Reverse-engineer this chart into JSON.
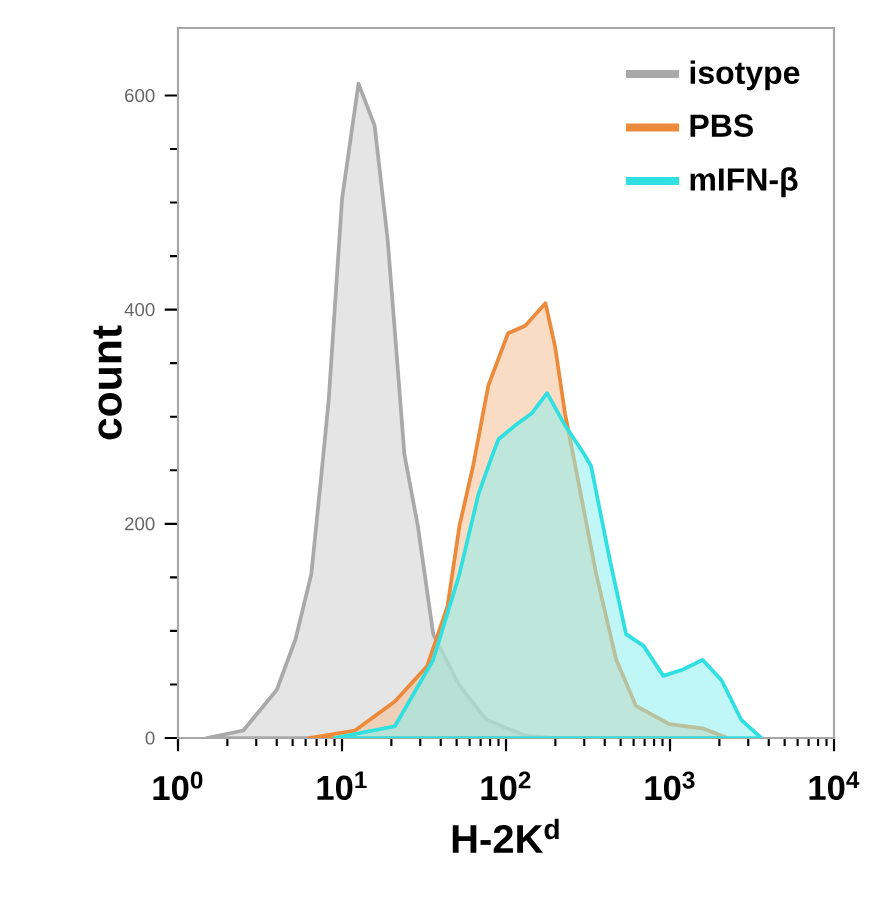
{
  "chart_data": {
    "type": "area",
    "xlabel": "H-2K$^{d}$",
    "ylabel": "count",
    "log": "x",
    "legend": "top right",
    "line_style": "solid",
    "xlim": [
      1,
      10000
    ],
    "ylim": [
      0,
      663
    ],
    "xticks": [
      {
        "value": 1,
        "label": "10$^{0}$"
      },
      {
        "value": 10,
        "label": "10$^{1}$"
      },
      {
        "value": 100,
        "label": "10$^{2}$"
      },
      {
        "value": 1000,
        "label": "10$^{3}$"
      },
      {
        "value": 10000,
        "label": "10$^{4}$"
      }
    ],
    "yticks": [
      0,
      200,
      400,
      600
    ],
    "series": [
      {
        "name": "isotype",
        "color": "#a9a9a9",
        "x": [
          1.5,
          2.5,
          4.0,
          5.2,
          6.5,
          7.5,
          8.3,
          10,
          12.6,
          15.8,
          19,
          22,
          24,
          29,
          36,
          52,
          76,
          132,
          200
        ],
        "values": [
          0,
          7,
          45,
          92,
          153,
          247,
          316,
          503,
          611,
          572,
          465,
          340,
          265,
          198,
          97,
          49,
          17,
          2,
          0
        ]
      },
      {
        "name": "PBS",
        "color": "#ec8a3c",
        "x": [
          6.3,
          12,
          21,
          33,
          44,
          52,
          63,
          78,
          103,
          131,
          174,
          199,
          229,
          270,
          355,
          470,
          620,
          990,
          1580,
          2240
        ],
        "values": [
          0,
          7,
          34,
          67,
          123,
          198,
          254,
          329,
          378,
          385,
          406,
          366,
          303,
          247,
          153,
          73,
          30,
          13,
          9,
          0
        ]
      },
      {
        "name": "mIFN-β",
        "color": "#30e0e0",
        "x": [
          9,
          21,
          36,
          52,
          68,
          83,
          90,
          114,
          143,
          178,
          229,
          300,
          330,
          430,
          540,
          690,
          910,
          1200,
          1580,
          2060,
          2720,
          3600
        ],
        "values": [
          0,
          11,
          73,
          153,
          228,
          265,
          279,
          292,
          303,
          322,
          292,
          265,
          254,
          166,
          97,
          86,
          58,
          64,
          73,
          54,
          17,
          0
        ]
      }
    ]
  }
}
